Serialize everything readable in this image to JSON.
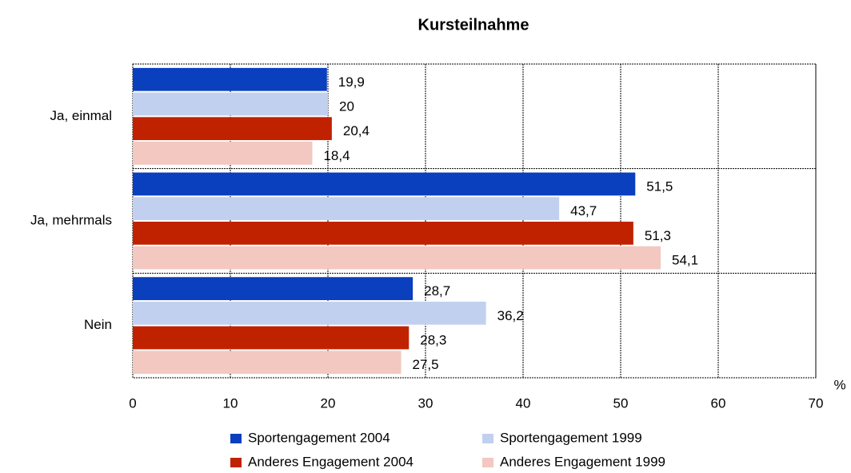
{
  "chart_data": {
    "type": "barh",
    "title": "Kursteilnahme",
    "x_label": "%",
    "categories": [
      "Ja, einmal",
      "Ja, mehrmals",
      "Nein"
    ],
    "series": [
      {
        "name": "Sportengagement 2004",
        "color": "#0a3fbe",
        "values": [
          19.9,
          51.5,
          28.7
        ],
        "value_labels": [
          "19,9",
          "51,5",
          "28,7"
        ]
      },
      {
        "name": "Sportengagement 1999",
        "color": "#c2d0f0",
        "values": [
          20,
          43.7,
          36.2
        ],
        "value_labels": [
          "20",
          "43,7",
          "36,2"
        ]
      },
      {
        "name": "Anderes Engagement 2004",
        "color": "#c02200",
        "values": [
          20.4,
          51.3,
          28.3
        ],
        "value_labels": [
          "20,4",
          "51,3",
          "28,3"
        ]
      },
      {
        "name": "Anderes Engagement 1999",
        "color": "#f2c8c0",
        "values": [
          18.4,
          54.1,
          27.5
        ],
        "value_labels": [
          "18,4",
          "54,1",
          "27,5"
        ]
      }
    ],
    "xlim": [
      0,
      70
    ],
    "xticks": [
      0,
      10,
      20,
      30,
      40,
      50,
      60,
      70
    ],
    "grid": true
  }
}
